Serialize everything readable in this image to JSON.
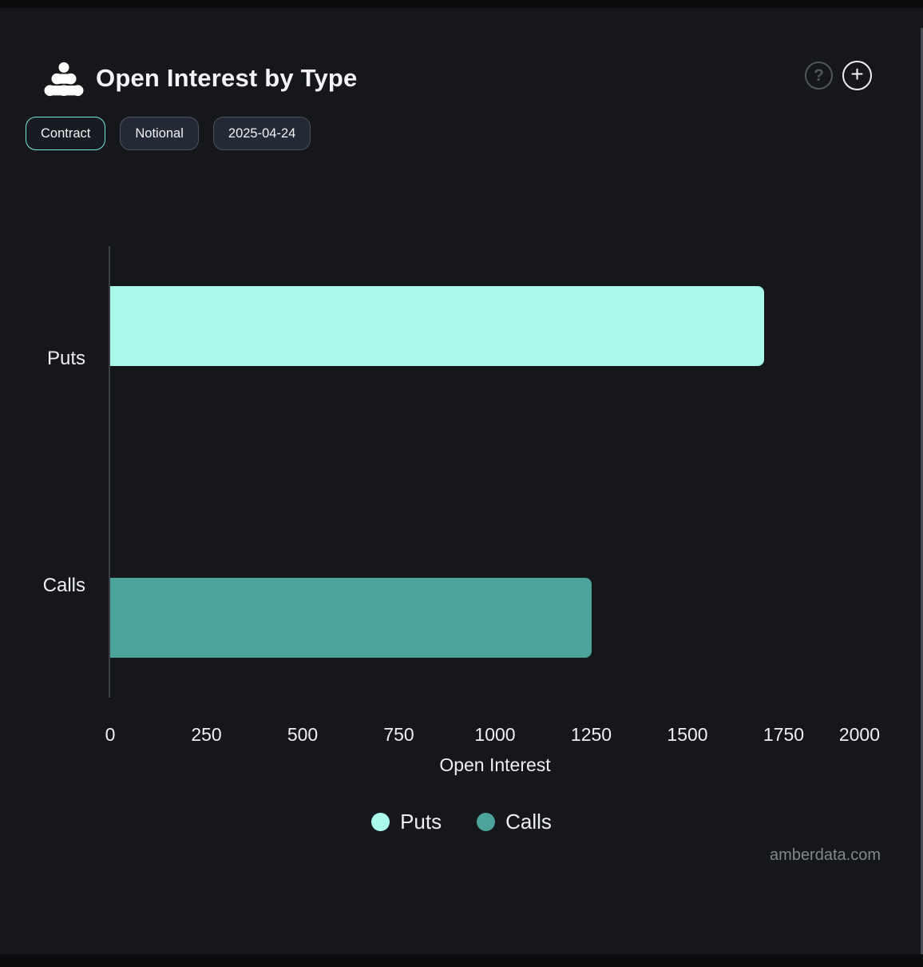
{
  "header": {
    "title": "Open Interest by Type",
    "logo_icon": "amberdata-logo",
    "help_glyph": "?",
    "add_glyph": "+"
  },
  "toolbar": {
    "buttons": [
      {
        "label": "Contract",
        "active": true
      },
      {
        "label": "Notional",
        "active": false
      },
      {
        "label": "2025-04-24",
        "active": false
      }
    ]
  },
  "chart_data": {
    "type": "bar",
    "orientation": "horizontal",
    "title": "Open Interest by Type",
    "categories": [
      "Puts",
      "Calls"
    ],
    "series": [
      {
        "name": "Puts",
        "color": "#aafaec",
        "values": [
          1700,
          null
        ]
      },
      {
        "name": "Calls",
        "color": "#4ba39c",
        "values": [
          null,
          1250
        ]
      }
    ],
    "xlabel": "Open Interest",
    "ylabel": "",
    "xlim": [
      0,
      2000
    ],
    "xticks": [
      0,
      250,
      500,
      750,
      1000,
      1250,
      1500,
      1750,
      2000
    ],
    "grid": false,
    "legend_position": "bottom",
    "legend": [
      {
        "label": "Puts",
        "color": "#aafaec"
      },
      {
        "label": "Calls",
        "color": "#4ba39c"
      }
    ]
  },
  "colors": {
    "background": "#15171a",
    "accent": "#74e8d4",
    "puts_bar": "#aafaec",
    "calls_bar": "#4ba39c",
    "axis_line": "#3c4046",
    "text": "#eef0f2",
    "muted_text": "#83868d"
  },
  "watermark": "amberdata.com"
}
